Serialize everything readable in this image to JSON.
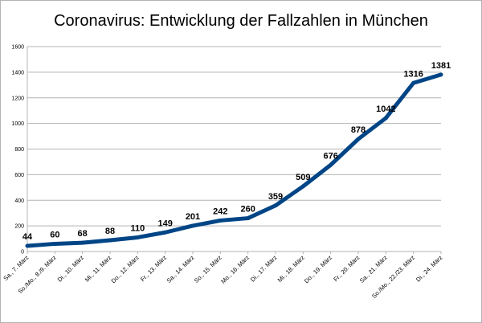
{
  "chart_data": {
    "type": "line",
    "title": "Coronavirus: Entwicklung der Fallzahlen in München",
    "xlabel": "",
    "ylabel": "",
    "ylim": [
      0,
      1600
    ],
    "y_ticks": [
      0,
      200,
      400,
      600,
      800,
      1000,
      1200,
      1400,
      1600
    ],
    "grid": true,
    "legend": "none",
    "line_color": "#004586",
    "categories": [
      "Sa., 7. März",
      "So./Mo., 8./9. März",
      "Di., 10. März",
      "Mi., 11. März",
      "Do., 12. März",
      "Fr., 13. März",
      "Sa., 14. März",
      "So., 15. März",
      "Mo., 16. März",
      "Di., 17. März",
      "Mi., 18. März",
      "Do., 19. März",
      "Fr., 20. März",
      "Sa., 21. März",
      "So./Mo., 22./23. März",
      "Di., 24. März"
    ],
    "values": [
      44,
      60,
      68,
      88,
      110,
      149,
      201,
      242,
      260,
      359,
      509,
      676,
      878,
      1042,
      1316,
      1381
    ],
    "data_labels": [
      "44",
      "60",
      "68",
      "88",
      "110",
      "149",
      "201",
      "242",
      "260",
      "359",
      "509",
      "676",
      "878",
      "1042",
      "1316",
      "1381"
    ]
  }
}
